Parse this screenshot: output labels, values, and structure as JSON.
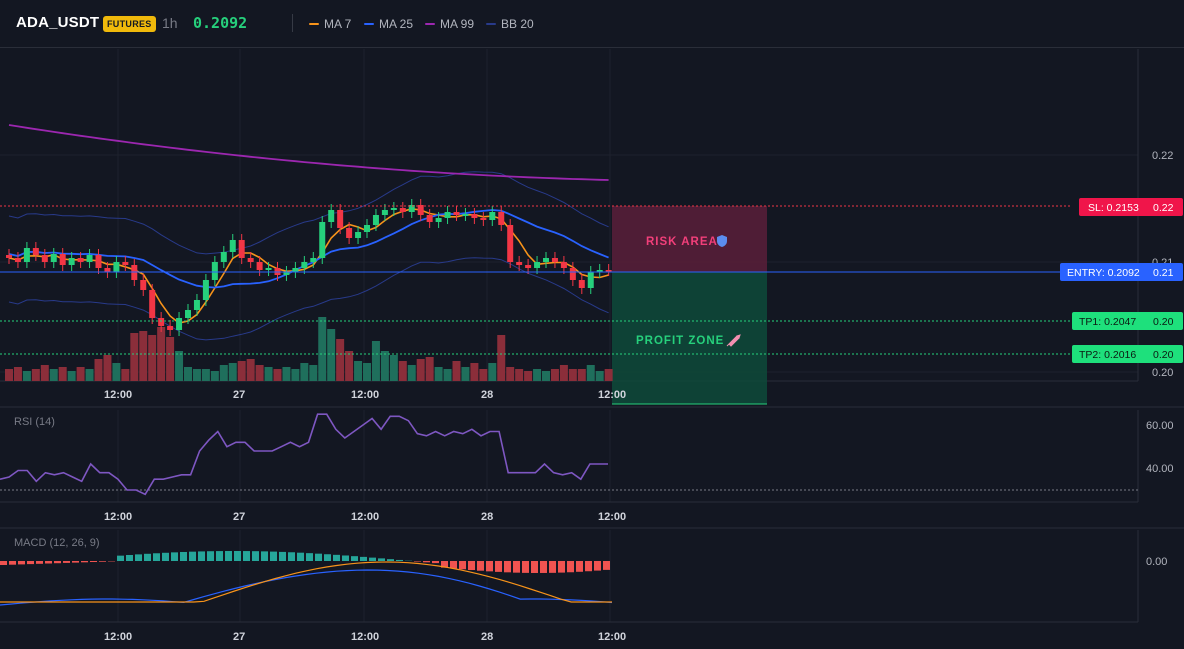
{
  "header": {
    "symbol": "ADA_USDT",
    "market_badge": "FUTURES",
    "timeframe": "1h",
    "last_price": "0.2092",
    "indicators": [
      {
        "label": "MA 7",
        "color": "#f7931a"
      },
      {
        "label": "MA 25",
        "color": "#2962ff"
      },
      {
        "label": "MA 99",
        "color": "#9c27b0"
      },
      {
        "label": "BB 20",
        "color": "#283a8a"
      }
    ]
  },
  "colors": {
    "up": "#26d07c",
    "down": "#f23645",
    "vol_up": "#1f6f5c",
    "vol_down": "#8b2e3a",
    "ma7": "#f7931a",
    "ma25": "#2962ff",
    "ma99": "#9c27b0",
    "bb": "#283a8a",
    "rsi": "#7e57c2",
    "macd_line": "#2962ff",
    "signal_line": "#f7931a",
    "entry": "#2962ff",
    "sl": "#f23645",
    "tp": "#26d07c"
  },
  "price_axis": {
    "ticks": [
      "0.22",
      "0.21",
      "0.20"
    ]
  },
  "time_axis": {
    "ticks": [
      "12:00",
      "27",
      "12:00",
      "28",
      "12:00"
    ]
  },
  "trade_levels": {
    "sl": {
      "label": "SL: 0.2153",
      "axis_label": "0.22",
      "price": 0.2153
    },
    "entry": {
      "label": "ENTRY: 0.2092",
      "axis_label": "0.21",
      "price": 0.2092
    },
    "tp1": {
      "label": "TP1: 0.2047",
      "axis_label": "0.20",
      "price": 0.2047
    },
    "tp2": {
      "label": "TP2: 0.2016",
      "axis_label": "0.20",
      "price": 0.2016
    }
  },
  "zones": {
    "risk": {
      "label": "RISK AREA",
      "icon": "shield-icon"
    },
    "profit": {
      "label": "PROFIT ZONE",
      "icon": "rocket-icon"
    }
  },
  "rsi": {
    "title": "RSI (14)",
    "ticks": [
      "60.00",
      "40.00"
    ],
    "values": [
      35,
      36,
      39,
      39,
      34,
      38,
      37,
      38,
      36,
      34,
      42,
      38,
      38,
      35,
      30,
      30,
      28,
      35,
      35,
      36,
      37,
      37,
      48,
      53,
      57,
      50,
      52,
      52,
      48,
      48,
      48,
      50,
      52,
      50,
      52,
      65,
      65,
      58,
      54,
      57,
      60,
      63,
      58,
      64,
      64,
      62,
      56,
      55,
      57,
      55,
      57,
      56,
      58,
      55,
      57,
      57,
      38,
      38,
      38,
      38,
      42,
      38,
      37,
      38,
      35,
      42,
      42,
      42
    ]
  },
  "macd": {
    "title": "MACD (12, 26, 9)",
    "ticks": [
      "0.00"
    ]
  }
}
